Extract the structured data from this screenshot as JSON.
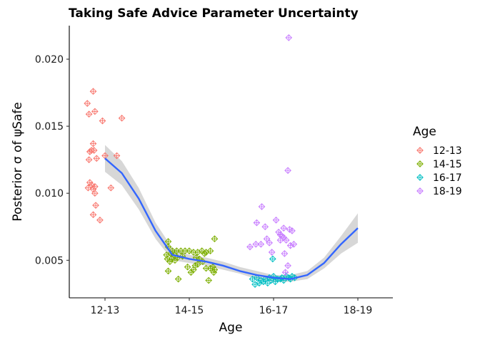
{
  "chart_data": {
    "type": "scatter",
    "title": "Taking Safe Advice Parameter Uncertainty",
    "xlabel": "Age",
    "ylabel": "Posterior σ of ψSafe",
    "categories": [
      "12-13",
      "14-15",
      "16-17",
      "18-19"
    ],
    "ylim": [
      0.0022,
      0.0225
    ],
    "yticks": [
      0.005,
      0.01,
      0.015,
      0.02
    ],
    "ytick_labels": [
      "0.005",
      "0.010",
      "0.015",
      "0.020"
    ],
    "grid": false,
    "legend": {
      "title": "Age",
      "position": "right"
    },
    "colors": {
      "12-13": "#F8766D",
      "14-15": "#7CAE00",
      "16-17": "#00BFC4",
      "18-19": "#C77CFF",
      "smooth": "#3366FF",
      "ribbon": "#D3D3D3"
    },
    "series": [
      {
        "name": "12-13",
        "points": [
          [
            0.79,
            0.0167
          ],
          [
            0.81,
            0.0159
          ],
          [
            0.86,
            0.0176
          ],
          [
            0.88,
            0.0161
          ],
          [
            0.97,
            0.0154
          ],
          [
            1.2,
            0.0156
          ],
          [
            0.84,
            0.0132
          ],
          [
            0.86,
            0.0137
          ],
          [
            0.87,
            0.0132
          ],
          [
            0.82,
            0.0131
          ],
          [
            0.81,
            0.0125
          ],
          [
            0.9,
            0.0126
          ],
          [
            1.0,
            0.0128
          ],
          [
            1.14,
            0.0128
          ],
          [
            0.82,
            0.0108
          ],
          [
            0.8,
            0.0104
          ],
          [
            0.84,
            0.0106
          ],
          [
            0.88,
            0.0105
          ],
          [
            0.86,
            0.0103
          ],
          [
            0.88,
            0.01
          ],
          [
            1.07,
            0.0104
          ],
          [
            0.89,
            0.0091
          ],
          [
            0.86,
            0.0084
          ],
          [
            0.94,
            0.008
          ]
        ]
      },
      {
        "name": "14-15",
        "points": [
          [
            1.75,
            0.0064
          ],
          [
            1.75,
            0.006
          ],
          [
            1.8,
            0.0057
          ],
          [
            1.85,
            0.0057
          ],
          [
            1.9,
            0.0057
          ],
          [
            1.95,
            0.0057
          ],
          [
            2.0,
            0.0057
          ],
          [
            2.05,
            0.0056
          ],
          [
            2.1,
            0.0056
          ],
          [
            2.15,
            0.0057
          ],
          [
            2.2,
            0.0056
          ],
          [
            2.25,
            0.0057
          ],
          [
            2.3,
            0.0066
          ],
          [
            1.78,
            0.0055
          ],
          [
            1.82,
            0.0054
          ],
          [
            1.86,
            0.0052
          ],
          [
            1.74,
            0.0051
          ],
          [
            1.79,
            0.0051
          ],
          [
            1.77,
            0.0049
          ],
          [
            1.83,
            0.005
          ],
          [
            2.08,
            0.0052
          ],
          [
            2.12,
            0.0051
          ],
          [
            2.16,
            0.0049
          ],
          [
            2.1,
            0.0047
          ],
          [
            1.98,
            0.0045
          ],
          [
            2.05,
            0.0043
          ],
          [
            2.2,
            0.0044
          ],
          [
            1.75,
            0.0042
          ],
          [
            2.02,
            0.0041
          ],
          [
            2.29,
            0.0041
          ],
          [
            2.3,
            0.0043
          ],
          [
            1.87,
            0.0036
          ],
          [
            2.23,
            0.0035
          ],
          [
            2.25,
            0.0044
          ],
          [
            2.28,
            0.0045
          ],
          [
            2.07,
            0.0046
          ],
          [
            1.92,
            0.0053
          ],
          [
            2.18,
            0.0055
          ],
          [
            1.73,
            0.0054
          ]
        ]
      },
      {
        "name": "16-17",
        "points": [
          [
            2.75,
            0.0036
          ],
          [
            2.8,
            0.0037
          ],
          [
            2.85,
            0.0035
          ],
          [
            2.9,
            0.0036
          ],
          [
            2.95,
            0.0037
          ],
          [
            3.0,
            0.0038
          ],
          [
            3.05,
            0.0036
          ],
          [
            3.1,
            0.0037
          ],
          [
            3.15,
            0.0038
          ],
          [
            3.2,
            0.0036
          ],
          [
            3.25,
            0.0037
          ],
          [
            2.78,
            0.0032
          ],
          [
            2.83,
            0.0033
          ],
          [
            2.88,
            0.0034
          ],
          [
            2.93,
            0.0033
          ],
          [
            2.97,
            0.0035
          ],
          [
            3.02,
            0.0034
          ],
          [
            3.08,
            0.0036
          ],
          [
            3.12,
            0.0035
          ],
          [
            3.18,
            0.0037
          ],
          [
            3.22,
            0.0038
          ],
          [
            2.99,
            0.0051
          ]
        ]
      },
      {
        "name": "18-19",
        "points": [
          [
            3.18,
            0.0216
          ],
          [
            3.17,
            0.0117
          ],
          [
            3.03,
            0.008
          ],
          [
            2.86,
            0.009
          ],
          [
            3.12,
            0.0074
          ],
          [
            3.19,
            0.0073
          ],
          [
            3.06,
            0.0071
          ],
          [
            3.08,
            0.0069
          ],
          [
            3.1,
            0.0068
          ],
          [
            3.12,
            0.0067
          ],
          [
            3.15,
            0.0065
          ],
          [
            3.2,
            0.0061
          ],
          [
            3.24,
            0.0062
          ],
          [
            2.92,
            0.0066
          ],
          [
            2.95,
            0.0063
          ],
          [
            3.08,
            0.0065
          ],
          [
            2.85,
            0.0062
          ],
          [
            2.79,
            0.0062
          ],
          [
            2.98,
            0.0056
          ],
          [
            3.13,
            0.0055
          ],
          [
            3.17,
            0.0046
          ],
          [
            3.14,
            0.0041
          ],
          [
            2.8,
            0.0078
          ],
          [
            2.9,
            0.0075
          ],
          [
            3.22,
            0.0072
          ],
          [
            2.72,
            0.006
          ]
        ]
      }
    ],
    "smooth": {
      "x": [
        1.0,
        1.2,
        1.4,
        1.6,
        1.8,
        2.0,
        2.2,
        2.4,
        2.6,
        2.8,
        3.0,
        3.2,
        3.4,
        3.6,
        3.8,
        4.0
      ],
      "y": [
        0.0126,
        0.0115,
        0.0096,
        0.0072,
        0.0054,
        0.0051,
        0.0049,
        0.0046,
        0.0042,
        0.0039,
        0.0037,
        0.0036,
        0.0039,
        0.0048,
        0.0062,
        0.0074
      ],
      "lower": [
        0.0116,
        0.0106,
        0.0088,
        0.0066,
        0.005,
        0.0048,
        0.0046,
        0.0043,
        0.004,
        0.0036,
        0.0034,
        0.0034,
        0.0036,
        0.0044,
        0.0055,
        0.0063
      ],
      "upper": [
        0.0136,
        0.0124,
        0.0104,
        0.0078,
        0.0059,
        0.0054,
        0.0052,
        0.0049,
        0.0045,
        0.0042,
        0.0039,
        0.0039,
        0.0042,
        0.0052,
        0.0068,
        0.0085
      ]
    }
  }
}
